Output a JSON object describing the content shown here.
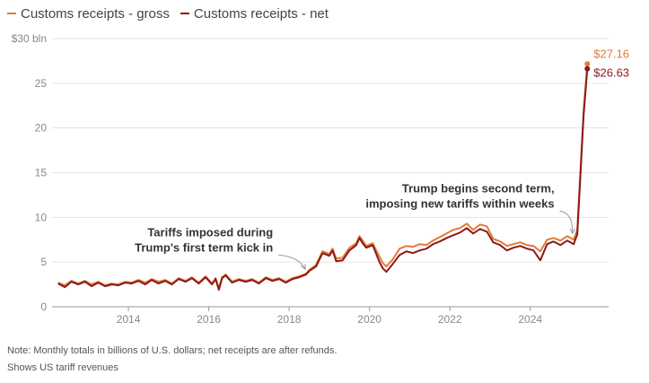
{
  "legend": {
    "items": [
      {
        "label": "Customs receipts - gross",
        "color": "#e07b39"
      },
      {
        "label": "Customs receipts - net",
        "color": "#8b1a1a"
      }
    ]
  },
  "notes": {
    "line1": "Note: Monthly totals in billions of U.S. dollars; net receipts are after refunds.",
    "line2": "Shows US tariff revenues"
  },
  "chart_data": {
    "type": "line",
    "title": "",
    "xlabel": "",
    "ylabel": "",
    "y_unit_label": "$30 bln",
    "ylim": [
      0,
      30
    ],
    "xlim": [
      2012.1,
      2025.95
    ],
    "y_ticks": [
      0,
      5,
      10,
      15,
      20,
      25
    ],
    "x_ticks": [
      2014,
      2016,
      2018,
      2020,
      2022,
      2024
    ],
    "grid": "horizontal",
    "legend_position": "top-left",
    "series": [
      {
        "name": "Customs receipts - gross",
        "color": "#e07b39",
        "end_label": "$27.16",
        "points": [
          [
            2012.25,
            2.7
          ],
          [
            2012.42,
            2.4
          ],
          [
            2012.58,
            2.9
          ],
          [
            2012.75,
            2.6
          ],
          [
            2012.92,
            2.9
          ],
          [
            2013.08,
            2.5
          ],
          [
            2013.25,
            2.8
          ],
          [
            2013.42,
            2.4
          ],
          [
            2013.58,
            2.6
          ],
          [
            2013.75,
            2.5
          ],
          [
            2013.92,
            2.8
          ],
          [
            2014.08,
            2.7
          ],
          [
            2014.25,
            3.0
          ],
          [
            2014.42,
            2.7
          ],
          [
            2014.58,
            3.1
          ],
          [
            2014.75,
            2.8
          ],
          [
            2014.92,
            3.0
          ],
          [
            2015.08,
            2.6
          ],
          [
            2015.25,
            3.2
          ],
          [
            2015.42,
            2.9
          ],
          [
            2015.58,
            3.3
          ],
          [
            2015.75,
            2.7
          ],
          [
            2015.92,
            3.4
          ],
          [
            2016.08,
            2.6
          ],
          [
            2016.17,
            3.2
          ],
          [
            2016.25,
            2.1
          ],
          [
            2016.33,
            3.3
          ],
          [
            2016.42,
            3.6
          ],
          [
            2016.58,
            2.8
          ],
          [
            2016.75,
            3.1
          ],
          [
            2016.92,
            2.9
          ],
          [
            2017.08,
            3.1
          ],
          [
            2017.25,
            2.7
          ],
          [
            2017.42,
            3.3
          ],
          [
            2017.58,
            3.0
          ],
          [
            2017.75,
            3.2
          ],
          [
            2017.92,
            2.8
          ],
          [
            2018.08,
            3.2
          ],
          [
            2018.25,
            3.4
          ],
          [
            2018.42,
            3.7
          ],
          [
            2018.5,
            4.1
          ],
          [
            2018.67,
            4.7
          ],
          [
            2018.83,
            6.2
          ],
          [
            2019.0,
            5.9
          ],
          [
            2019.08,
            6.5
          ],
          [
            2019.17,
            5.4
          ],
          [
            2019.33,
            5.5
          ],
          [
            2019.5,
            6.6
          ],
          [
            2019.67,
            7.1
          ],
          [
            2019.75,
            7.9
          ],
          [
            2019.83,
            7.4
          ],
          [
            2019.92,
            6.8
          ],
          [
            2020.08,
            7.1
          ],
          [
            2020.25,
            5.6
          ],
          [
            2020.33,
            4.9
          ],
          [
            2020.42,
            4.5
          ],
          [
            2020.58,
            5.3
          ],
          [
            2020.75,
            6.5
          ],
          [
            2020.92,
            6.8
          ],
          [
            2021.08,
            6.7
          ],
          [
            2021.25,
            7.0
          ],
          [
            2021.42,
            6.9
          ],
          [
            2021.58,
            7.4
          ],
          [
            2021.75,
            7.8
          ],
          [
            2021.92,
            8.2
          ],
          [
            2022.08,
            8.6
          ],
          [
            2022.25,
            8.8
          ],
          [
            2022.42,
            9.3
          ],
          [
            2022.58,
            8.6
          ],
          [
            2022.75,
            9.2
          ],
          [
            2022.92,
            9.0
          ],
          [
            2023.08,
            7.6
          ],
          [
            2023.25,
            7.3
          ],
          [
            2023.42,
            6.8
          ],
          [
            2023.58,
            7.0
          ],
          [
            2023.75,
            7.2
          ],
          [
            2023.92,
            6.9
          ],
          [
            2024.08,
            6.8
          ],
          [
            2024.25,
            6.2
          ],
          [
            2024.42,
            7.5
          ],
          [
            2024.58,
            7.7
          ],
          [
            2024.75,
            7.4
          ],
          [
            2024.92,
            7.9
          ],
          [
            2025.08,
            7.5
          ],
          [
            2025.17,
            8.6
          ],
          [
            2025.33,
            22.0
          ],
          [
            2025.42,
            27.16
          ]
        ]
      },
      {
        "name": "Customs receipts - net",
        "color": "#8b1a1a",
        "end_label": "$26.63",
        "points": [
          [
            2012.25,
            2.6
          ],
          [
            2012.42,
            2.2
          ],
          [
            2012.58,
            2.8
          ],
          [
            2012.75,
            2.5
          ],
          [
            2012.92,
            2.8
          ],
          [
            2013.08,
            2.3
          ],
          [
            2013.25,
            2.7
          ],
          [
            2013.42,
            2.3
          ],
          [
            2013.58,
            2.5
          ],
          [
            2013.75,
            2.4
          ],
          [
            2013.92,
            2.7
          ],
          [
            2014.08,
            2.6
          ],
          [
            2014.25,
            2.9
          ],
          [
            2014.42,
            2.5
          ],
          [
            2014.58,
            3.0
          ],
          [
            2014.75,
            2.6
          ],
          [
            2014.92,
            2.9
          ],
          [
            2015.08,
            2.5
          ],
          [
            2015.25,
            3.1
          ],
          [
            2015.42,
            2.8
          ],
          [
            2015.58,
            3.2
          ],
          [
            2015.75,
            2.6
          ],
          [
            2015.92,
            3.3
          ],
          [
            2016.08,
            2.5
          ],
          [
            2016.17,
            3.1
          ],
          [
            2016.25,
            1.9
          ],
          [
            2016.33,
            3.2
          ],
          [
            2016.42,
            3.5
          ],
          [
            2016.58,
            2.7
          ],
          [
            2016.75,
            3.0
          ],
          [
            2016.92,
            2.8
          ],
          [
            2017.08,
            3.0
          ],
          [
            2017.25,
            2.6
          ],
          [
            2017.42,
            3.2
          ],
          [
            2017.58,
            2.9
          ],
          [
            2017.75,
            3.1
          ],
          [
            2017.92,
            2.7
          ],
          [
            2018.08,
            3.1
          ],
          [
            2018.25,
            3.3
          ],
          [
            2018.42,
            3.6
          ],
          [
            2018.5,
            4.0
          ],
          [
            2018.67,
            4.5
          ],
          [
            2018.83,
            6.0
          ],
          [
            2019.0,
            5.7
          ],
          [
            2019.08,
            6.3
          ],
          [
            2019.17,
            5.1
          ],
          [
            2019.33,
            5.2
          ],
          [
            2019.5,
            6.3
          ],
          [
            2019.67,
            6.9
          ],
          [
            2019.75,
            7.7
          ],
          [
            2019.83,
            7.1
          ],
          [
            2019.92,
            6.6
          ],
          [
            2020.08,
            6.9
          ],
          [
            2020.25,
            5.0
          ],
          [
            2020.33,
            4.3
          ],
          [
            2020.42,
            3.9
          ],
          [
            2020.58,
            4.8
          ],
          [
            2020.75,
            5.8
          ],
          [
            2020.92,
            6.2
          ],
          [
            2021.08,
            6.0
          ],
          [
            2021.25,
            6.3
          ],
          [
            2021.42,
            6.5
          ],
          [
            2021.58,
            7.0
          ],
          [
            2021.75,
            7.3
          ],
          [
            2021.92,
            7.7
          ],
          [
            2022.08,
            8.0
          ],
          [
            2022.25,
            8.3
          ],
          [
            2022.42,
            8.8
          ],
          [
            2022.58,
            8.2
          ],
          [
            2022.75,
            8.7
          ],
          [
            2022.92,
            8.4
          ],
          [
            2023.08,
            7.2
          ],
          [
            2023.25,
            6.9
          ],
          [
            2023.42,
            6.3
          ],
          [
            2023.58,
            6.6
          ],
          [
            2023.75,
            6.8
          ],
          [
            2023.92,
            6.5
          ],
          [
            2024.08,
            6.3
          ],
          [
            2024.25,
            5.2
          ],
          [
            2024.42,
            7.0
          ],
          [
            2024.58,
            7.3
          ],
          [
            2024.75,
            6.9
          ],
          [
            2024.92,
            7.4
          ],
          [
            2025.08,
            7.0
          ],
          [
            2025.17,
            8.1
          ],
          [
            2025.33,
            21.5
          ],
          [
            2025.42,
            26.63
          ]
        ]
      }
    ],
    "annotations": [
      {
        "lines": [
          "Tariffs imposed during",
          "Trump's first term kick in"
        ],
        "anchor_x": 2018.4,
        "anchor_y": 4.2,
        "label_x": 2017.6,
        "label_y": 7.9
      },
      {
        "lines": [
          "Trump begins second term,",
          "imposing new tariffs within weeks"
        ],
        "anchor_x": 2025.05,
        "anchor_y": 8.2,
        "label_x": 2024.6,
        "label_y": 12.8
      }
    ]
  }
}
